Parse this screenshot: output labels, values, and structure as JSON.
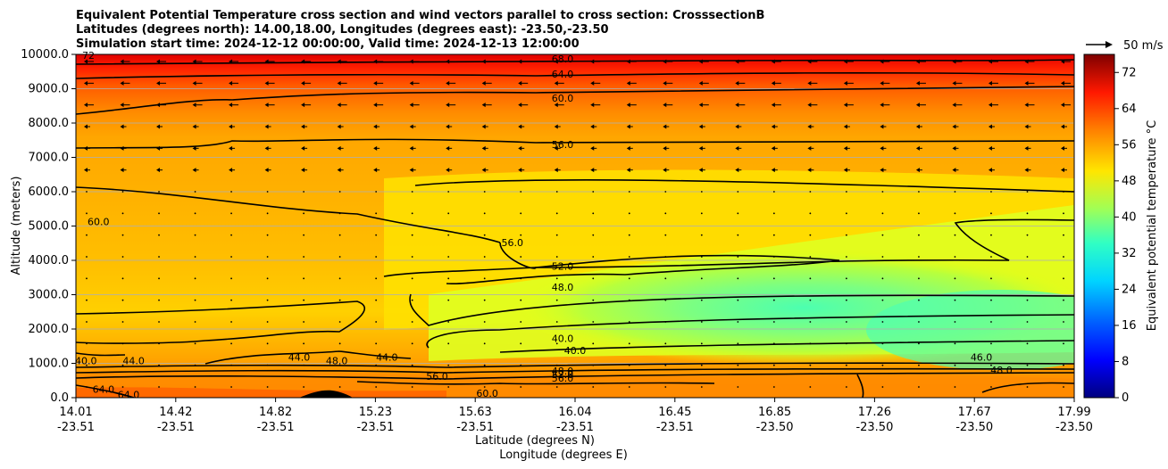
{
  "chart_data": {
    "type": "contour",
    "title_lines": [
      "Equivalent Potential Temperature cross section and wind vectors parallel to cross section: CrosssectionB",
      "Latitudes (degrees north): 14.00,18.00, Longitudes (degrees east): -23.50,-23.50",
      "Simulation start time: 2024-12-12 00:00:00, Valid time: 2024-12-13 12:00:00"
    ],
    "ylabel": "Altitude (meters)",
    "xlabel_lat": "Latitude (degrees N)",
    "xlabel_lon": "Longitude (degrees E)",
    "ylim": [
      0,
      10000
    ],
    "yticks": [
      "0.0",
      "1000.0",
      "2000.0",
      "3000.0",
      "4000.0",
      "5000.0",
      "6000.0",
      "7000.0",
      "8000.0",
      "9000.0",
      "10000.0"
    ],
    "xlim": [
      14.01,
      17.99
    ],
    "xticks_lat": [
      "14.01",
      "14.42",
      "14.82",
      "15.23",
      "15.63",
      "16.04",
      "16.45",
      "16.85",
      "17.26",
      "17.67",
      "17.99"
    ],
    "xticks_lon": [
      "-23.51",
      "-23.51",
      "-23.51",
      "-23.51",
      "-23.51",
      "-23.51",
      "-23.51",
      "-23.50",
      "-23.50",
      "-23.50",
      "-23.50"
    ],
    "colorbar": {
      "label": "Equivalent potential temperature $^\\circ$C",
      "label_display": "Equivalent potential temperature °C",
      "range": [
        0,
        76
      ],
      "ticks": [
        "0",
        "8",
        "16",
        "24",
        "32",
        "40",
        "48",
        "56",
        "64",
        "72"
      ]
    },
    "quiver_key": "50 m/s",
    "contour_labels": [
      {
        "text": "68.0",
        "lat": 15.95,
        "alt": 9850
      },
      {
        "text": "64.0",
        "lat": 15.95,
        "alt": 9400
      },
      {
        "text": "60.0",
        "lat": 15.95,
        "alt": 8700
      },
      {
        "text": "56.0",
        "lat": 15.95,
        "alt": 7350
      },
      {
        "text": "60.0",
        "lat": 14.1,
        "alt": 5100
      },
      {
        "text": "56.0",
        "lat": 15.75,
        "alt": 4500
      },
      {
        "text": "52.0",
        "lat": 15.95,
        "alt": 3800
      },
      {
        "text": "48.0",
        "lat": 15.95,
        "alt": 3200
      },
      {
        "text": "40.0",
        "lat": 15.95,
        "alt": 1700
      },
      {
        "text": "40.0",
        "lat": 16.0,
        "alt": 1350
      },
      {
        "text": "44.0",
        "lat": 14.24,
        "alt": 1050
      },
      {
        "text": "40.0",
        "lat": 14.05,
        "alt": 1050
      },
      {
        "text": "44.0",
        "lat": 14.9,
        "alt": 1150
      },
      {
        "text": "48.0",
        "lat": 15.05,
        "alt": 1050
      },
      {
        "text": "44.0",
        "lat": 15.25,
        "alt": 1150
      },
      {
        "text": "48.0",
        "lat": 15.95,
        "alt": 750
      },
      {
        "text": "52.0",
        "lat": 15.95,
        "alt": 650
      },
      {
        "text": "56.0",
        "lat": 15.95,
        "alt": 550
      },
      {
        "text": "56.0",
        "lat": 15.45,
        "alt": 600
      },
      {
        "text": "60.0",
        "lat": 15.65,
        "alt": 100
      },
      {
        "text": "64.0",
        "lat": 14.12,
        "alt": 220
      },
      {
        "text": "64.0",
        "lat": 14.22,
        "alt": 60
      },
      {
        "text": "46.0",
        "lat": 17.62,
        "alt": 1150
      },
      {
        "text": "48.0",
        "lat": 17.7,
        "alt": 780
      },
      {
        "text": "72",
        "lat": 14.06,
        "alt": 9950
      }
    ]
  }
}
